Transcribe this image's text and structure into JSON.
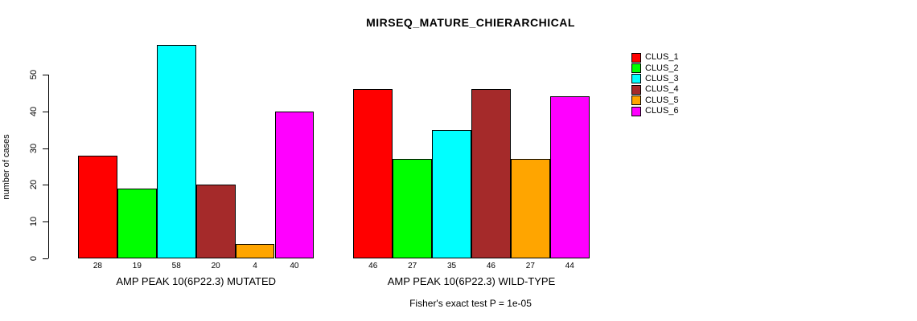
{
  "title": "MIRSEQ_MATURE_CHIERARCHICAL",
  "ylabel": "number of cases",
  "footer": "Fisher's exact test P = 1e-05",
  "legend": {
    "position": "right",
    "items": [
      {
        "label": "CLUS_1",
        "color": "#FF0000"
      },
      {
        "label": "CLUS_2",
        "color": "#00FF00"
      },
      {
        "label": "CLUS_3",
        "color": "#00FFFF"
      },
      {
        "label": "CLUS_4",
        "color": "#A52A2A"
      },
      {
        "label": "CLUS_5",
        "color": "#FFA500"
      },
      {
        "label": "CLUS_6",
        "color": "#FF00FF"
      }
    ]
  },
  "chart_data": {
    "type": "bar",
    "title": "MIRSEQ_MATURE_CHIERARCHICAL",
    "ylabel": "number of cases",
    "xlabel": "",
    "annotation": "Fisher's exact test P = 1e-05",
    "series": [
      "CLUS_1",
      "CLUS_2",
      "CLUS_3",
      "CLUS_4",
      "CLUS_5",
      "CLUS_6"
    ],
    "colors": [
      "#FF0000",
      "#00FF00",
      "#00FFFF",
      "#A52A2A",
      "#FFA500",
      "#FF00FF"
    ],
    "groups": [
      {
        "label": "AMP PEAK 10(6P22.3) MUTATED",
        "values": [
          28,
          19,
          58,
          20,
          4,
          40
        ]
      },
      {
        "label": "AMP PEAK 10(6P22.3) WILD-TYPE",
        "values": [
          46,
          27,
          35,
          46,
          27,
          44
        ]
      }
    ],
    "yticks": [
      0,
      10,
      20,
      30,
      40,
      50
    ],
    "ylim": [
      0,
      58
    ],
    "grid": false,
    "legend_position": "right",
    "bar_border_color": "#000000"
  }
}
